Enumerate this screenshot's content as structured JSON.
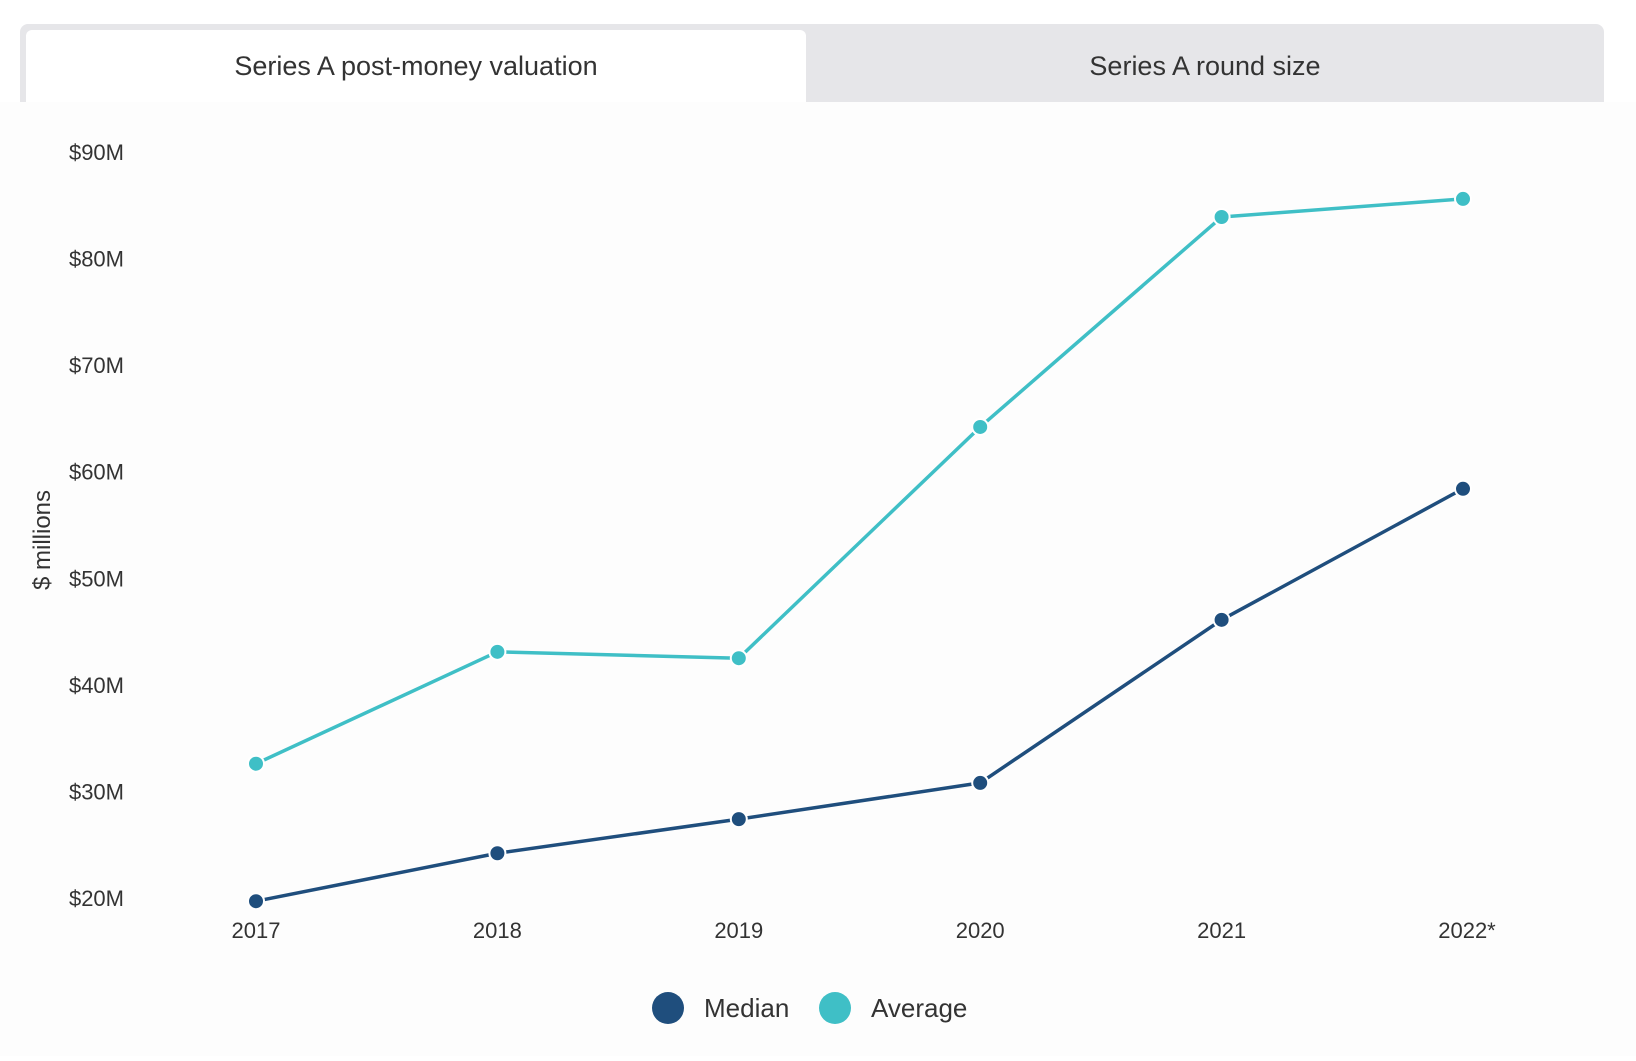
{
  "tabs": [
    {
      "label": "Series A post-money valuation",
      "active": true
    },
    {
      "label": "Series A round size",
      "active": false
    }
  ],
  "chart_data": {
    "type": "line",
    "x": [
      "2017",
      "2018",
      "2019",
      "2020",
      "2021",
      "2022*"
    ],
    "series": [
      {
        "name": "Median",
        "color": "#1f4e7d",
        "values": [
          19.7,
          24.2,
          27.4,
          30.8,
          46.1,
          58.4
        ]
      },
      {
        "name": "Average",
        "color": "#3fbfc6",
        "values": [
          32.6,
          43.1,
          42.5,
          64.2,
          83.9,
          85.6
        ]
      }
    ],
    "ylabel": "$ millions",
    "ylim": [
      20,
      90
    ],
    "yticks": [
      20,
      30,
      40,
      50,
      60,
      70,
      80,
      90
    ],
    "ytick_labels": [
      "$20M",
      "$30M",
      "$40M",
      "$50M",
      "$60M",
      "$70M",
      "$80M",
      "$90M"
    ],
    "legend_position": "bottom-center",
    "grid": false
  }
}
